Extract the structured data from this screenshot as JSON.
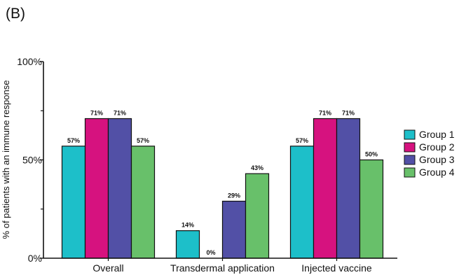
{
  "panel_label": "(B)",
  "chart_data": {
    "type": "bar",
    "title": "",
    "xlabel": "",
    "ylabel": "% of patients with an immune response",
    "ylim": [
      0,
      100
    ],
    "yticks": [
      {
        "value": 0,
        "label": "0%"
      },
      {
        "value": 50,
        "label": "50%"
      },
      {
        "value": 100,
        "label": "100%"
      }
    ],
    "grid": false,
    "legend_position": "right",
    "categories": [
      "Overall",
      "Transdermal application",
      "Injected vaccine"
    ],
    "series": [
      {
        "name": "Group 1",
        "color": "#1dbfc9",
        "values": [
          57,
          14,
          57
        ],
        "labels": [
          "57%",
          "14%",
          "57%"
        ]
      },
      {
        "name": "Group 2",
        "color": "#d6127f",
        "values": [
          71,
          0,
          71
        ],
        "labels": [
          "71%",
          "0%",
          "71%"
        ]
      },
      {
        "name": "Group 3",
        "color": "#5250a6",
        "values": [
          71,
          29,
          71
        ],
        "labels": [
          "71%",
          "29%",
          "71%"
        ]
      },
      {
        "name": "Group 4",
        "color": "#68c06a",
        "values": [
          57,
          43,
          50
        ],
        "labels": [
          "57%",
          "43%",
          "50%"
        ]
      }
    ]
  }
}
